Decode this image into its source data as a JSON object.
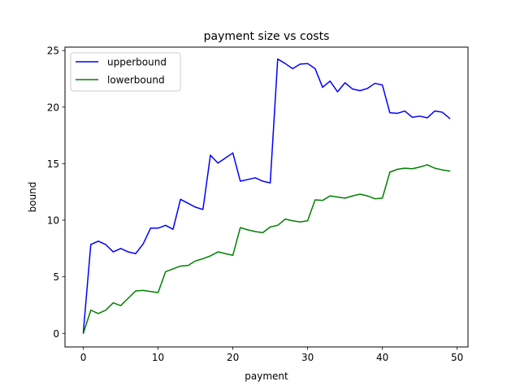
{
  "chart_data": {
    "type": "line",
    "title": "payment size vs costs",
    "xlabel": "payment",
    "ylabel": "bound",
    "xlim": [
      -2.45,
      51.45
    ],
    "ylim": [
      -1.2,
      25.3
    ],
    "xticks": [
      0,
      10,
      20,
      30,
      40,
      50
    ],
    "yticks": [
      0,
      5,
      10,
      15,
      20,
      25
    ],
    "grid": false,
    "legend_position": "top-left",
    "x": [
      0,
      1,
      2,
      3,
      4,
      5,
      6,
      7,
      8,
      9,
      10,
      11,
      12,
      13,
      14,
      15,
      16,
      17,
      18,
      19,
      20,
      21,
      22,
      23,
      24,
      25,
      26,
      27,
      28,
      29,
      30,
      31,
      32,
      33,
      34,
      35,
      36,
      37,
      38,
      39,
      40,
      41,
      42,
      43,
      44,
      45,
      46,
      47,
      48,
      49
    ],
    "series": [
      {
        "name": "upperbound",
        "color": "#0000ff",
        "values": [
          0.1,
          7.85,
          8.15,
          7.85,
          7.2,
          7.5,
          7.2,
          7.05,
          7.9,
          9.3,
          9.3,
          9.55,
          9.2,
          11.85,
          11.5,
          11.15,
          10.95,
          15.75,
          15.05,
          15.5,
          15.95,
          13.45,
          13.6,
          13.75,
          13.45,
          13.3,
          24.25,
          23.85,
          23.4,
          23.8,
          23.85,
          23.4,
          21.75,
          22.3,
          21.35,
          22.15,
          21.6,
          21.45,
          21.65,
          22.1,
          21.95,
          19.5,
          19.45,
          19.65,
          19.1,
          19.2,
          19.05,
          19.65,
          19.55,
          19.0
        ]
      },
      {
        "name": "lowerbound",
        "color": "#008000",
        "values": [
          0.0,
          2.05,
          1.75,
          2.05,
          2.7,
          2.45,
          3.1,
          3.75,
          3.8,
          3.7,
          3.6,
          5.45,
          5.7,
          5.95,
          6.0,
          6.4,
          6.6,
          6.85,
          7.2,
          7.05,
          6.9,
          9.35,
          9.15,
          9.0,
          8.9,
          9.4,
          9.55,
          10.1,
          9.95,
          9.85,
          9.95,
          11.8,
          11.75,
          12.15,
          12.05,
          11.95,
          12.15,
          12.3,
          12.15,
          11.9,
          11.95,
          14.25,
          14.5,
          14.6,
          14.55,
          14.7,
          14.9,
          14.6,
          14.45,
          14.35
        ]
      }
    ]
  }
}
